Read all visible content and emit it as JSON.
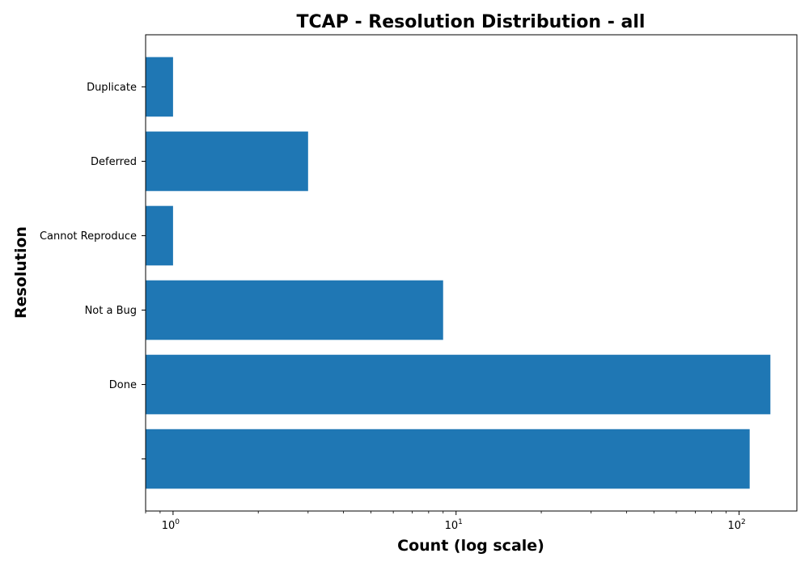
{
  "chart_data": {
    "type": "bar",
    "orientation": "horizontal",
    "title": "TCAP - Resolution Distribution - all",
    "xlabel": "Count (log scale)",
    "ylabel": "Resolution",
    "x_scale": "log",
    "xlim": [
      0.8,
      160
    ],
    "x_ticks": [
      {
        "value": 1,
        "base": "10",
        "exp": "0"
      },
      {
        "value": 10,
        "base": "10",
        "exp": "1"
      },
      {
        "value": 100,
        "base": "10",
        "exp": "2"
      }
    ],
    "categories": [
      "",
      "Done",
      "Not a Bug",
      "Cannot Reproduce",
      "Deferred",
      "Duplicate"
    ],
    "values": [
      109,
      129,
      9,
      1,
      3,
      1
    ],
    "bar_color": "#1f77b4",
    "grid": false,
    "legend": "none"
  }
}
